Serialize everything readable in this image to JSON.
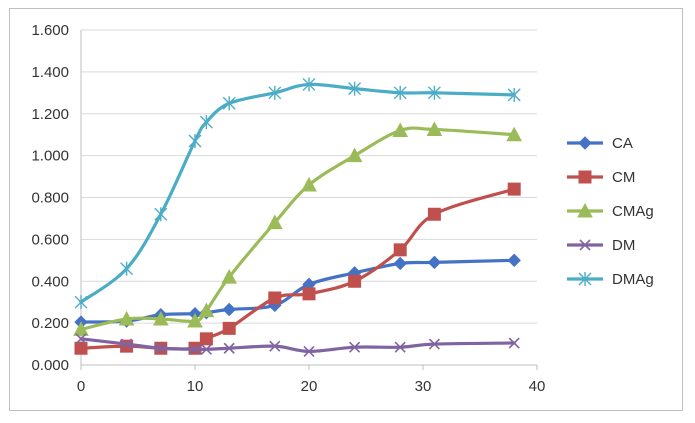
{
  "chart_data": {
    "type": "line",
    "title": "",
    "xlabel": "",
    "ylabel": "",
    "xlim": [
      0,
      40
    ],
    "ylim": [
      0,
      1.6
    ],
    "x_ticks": [
      "0",
      "10",
      "20",
      "30",
      "40"
    ],
    "y_ticks": [
      "0.000",
      "0.200",
      "0.400",
      "0.600",
      "0.800",
      "1.000",
      "1.200",
      "1.400",
      "1.600"
    ],
    "grid": "horizontal",
    "legend_position": "right",
    "series": [
      {
        "name": "CA",
        "color": "#4472c4",
        "marker": "diamond",
        "x": [
          0,
          4,
          7,
          10,
          11,
          13,
          17,
          20,
          24,
          28,
          31,
          38
        ],
        "y": [
          0.205,
          0.21,
          0.24,
          0.245,
          0.25,
          0.265,
          0.285,
          0.385,
          0.44,
          0.485,
          0.49,
          0.5
        ]
      },
      {
        "name": "CM",
        "color": "#c0504d",
        "marker": "square",
        "x": [
          0,
          4,
          7,
          10,
          11,
          13,
          17,
          20,
          24,
          28,
          31,
          38
        ],
        "y": [
          0.08,
          0.09,
          0.08,
          0.08,
          0.125,
          0.175,
          0.32,
          0.34,
          0.4,
          0.55,
          0.72,
          0.84
        ]
      },
      {
        "name": "CMAg",
        "color": "#9bbb59",
        "marker": "triangle",
        "x": [
          0,
          4,
          7,
          10,
          11,
          13,
          17,
          20,
          24,
          28,
          31,
          38
        ],
        "y": [
          0.17,
          0.22,
          0.22,
          0.21,
          0.26,
          0.42,
          0.68,
          0.86,
          1.0,
          1.12,
          1.125,
          1.1
        ]
      },
      {
        "name": "DM",
        "color": "#8064a2",
        "marker": "x",
        "x": [
          0,
          4,
          7,
          10,
          11,
          13,
          17,
          20,
          24,
          28,
          31,
          38
        ],
        "y": [
          0.125,
          0.1,
          0.08,
          0.075,
          0.075,
          0.08,
          0.09,
          0.065,
          0.085,
          0.085,
          0.1,
          0.105
        ]
      },
      {
        "name": "DMAg",
        "color": "#4bacc6",
        "marker": "asterisk",
        "x": [
          0,
          4,
          7,
          10,
          11,
          13,
          17,
          20,
          24,
          28,
          31,
          38
        ],
        "y": [
          0.3,
          0.46,
          0.72,
          1.07,
          1.16,
          1.25,
          1.3,
          1.34,
          1.32,
          1.3,
          1.3,
          1.29
        ]
      }
    ]
  }
}
